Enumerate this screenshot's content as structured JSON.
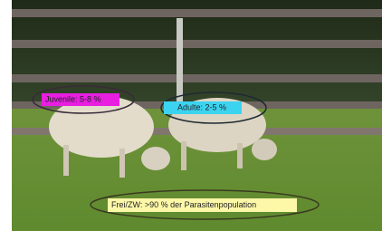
{
  "annotations": [
    {
      "label": "Juvenile: 5-8 %"
    },
    {
      "label": "Adulte: 2-5 %"
    },
    {
      "label": "Frei/ZW: >90 % der Parasitenpopulation"
    }
  ]
}
